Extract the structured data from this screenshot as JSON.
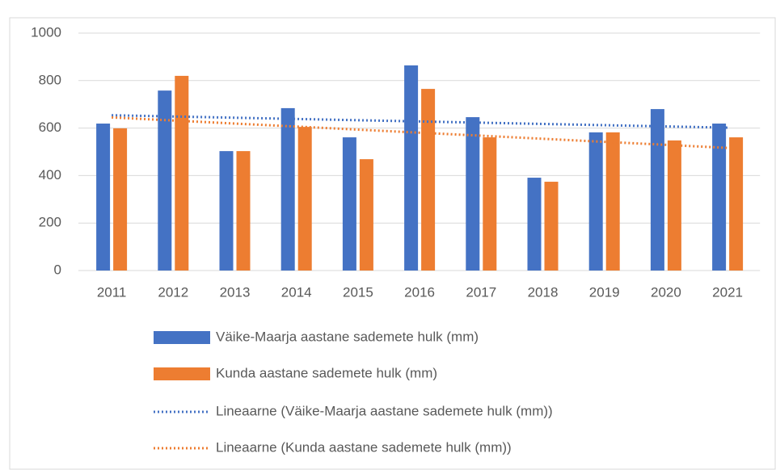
{
  "chart_data": {
    "type": "bar",
    "categories": [
      "2011",
      "2012",
      "2013",
      "2014",
      "2015",
      "2016",
      "2017",
      "2018",
      "2019",
      "2020",
      "2021"
    ],
    "series": [
      {
        "name": "Väike-Maarja aastane sademete hulk (mm)",
        "color": "#4472c4",
        "values": [
          619,
          758,
          503,
          684,
          561,
          864,
          646,
          391,
          582,
          680,
          619
        ]
      },
      {
        "name": "Kunda aastane sademete hulk (mm)",
        "color": "#ed7d31",
        "values": [
          599,
          820,
          503,
          605,
          469,
          765,
          561,
          374,
          582,
          548,
          561
        ]
      }
    ],
    "trendlines": [
      {
        "name": "Lineaarne (Väike-Maarja aastane sademete hulk (mm))",
        "color": "#4472c4",
        "of_series": 0
      },
      {
        "name": "Lineaarne (Kunda aastane sademete hulk (mm))",
        "color": "#ed7d31",
        "of_series": 1
      }
    ],
    "ylim": [
      0,
      1000
    ],
    "yticks": [
      0,
      200,
      400,
      600,
      800,
      1000
    ],
    "grid": true,
    "legend": "bottom"
  }
}
